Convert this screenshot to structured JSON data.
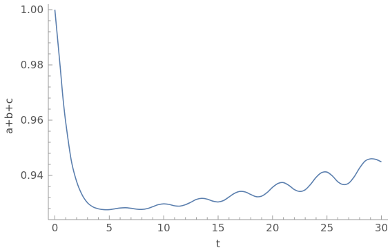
{
  "chart_data": {
    "type": "line",
    "title": "",
    "xlabel": "t",
    "ylabel": "a+b+c",
    "xlim": [
      -0.6,
      30.6
    ],
    "ylim": [
      0.924,
      1.002
    ],
    "grid": false,
    "legend": "none",
    "series": [
      {
        "color": "#5b7fae",
        "x": [
          0,
          0.25,
          0.5,
          0.75,
          1,
          1.5,
          2,
          2.5,
          3,
          3.5,
          4,
          4.5,
          5,
          5.5,
          6,
          6.5,
          7,
          7.5,
          8,
          8.5,
          9,
          9.5,
          10,
          10.5,
          11,
          11.5,
          12,
          12.5,
          13,
          13.5,
          14,
          14.5,
          15,
          15.5,
          16,
          16.5,
          17,
          17.5,
          18,
          18.5,
          19,
          19.5,
          20,
          20.5,
          21,
          21.5,
          22,
          22.5,
          23,
          23.5,
          24,
          24.5,
          25,
          25.5,
          26,
          26.5,
          27,
          27.5,
          28,
          28.5,
          29,
          29.5,
          30
        ],
        "y": [
          1.0,
          0.9895,
          0.9789,
          0.9679,
          0.9592,
          0.9456,
          0.9378,
          0.933,
          0.9301,
          0.9286,
          0.9279,
          0.9276,
          0.9276,
          0.9279,
          0.9282,
          0.9283,
          0.9281,
          0.9278,
          0.9277,
          0.928,
          0.9287,
          0.9294,
          0.9297,
          0.9295,
          0.929,
          0.9289,
          0.9294,
          0.9303,
          0.9313,
          0.9317,
          0.9314,
          0.9307,
          0.9304,
          0.9309,
          0.9322,
          0.9335,
          0.9342,
          0.934,
          0.9331,
          0.9323,
          0.9325,
          0.9338,
          0.9357,
          0.9371,
          0.9374,
          0.9364,
          0.9349,
          0.9342,
          0.9348,
          0.9368,
          0.9393,
          0.941,
          0.9412,
          0.9398,
          0.9377,
          0.9367,
          0.9372,
          0.9395,
          0.9427,
          0.9452,
          0.946,
          0.9458,
          0.9449
        ]
      }
    ],
    "x_ticks": [
      0,
      5,
      10,
      15,
      20,
      25,
      30
    ],
    "x_minor_step": 1,
    "y_ticks": [
      0.94,
      0.96,
      0.98,
      1.0
    ],
    "y_tick_labels": [
      "0.94",
      "0.96",
      "0.98",
      "1.00"
    ],
    "y_minor_step": 0.004
  }
}
